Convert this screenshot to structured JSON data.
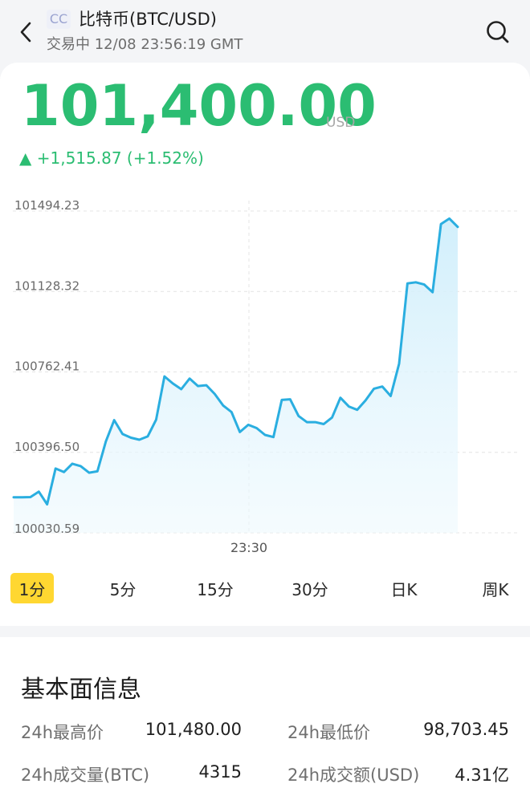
{
  "header": {
    "badge": "CC",
    "title": "比特币(BTC/USD)",
    "status": "交易中 12/08 23:56:19 GMT",
    "back_icon": "chevron-left-icon",
    "search_icon": "search-icon"
  },
  "quote": {
    "price": "101,400.00",
    "currency": "USD",
    "change": "▲ +1,515.87 (+1.52%)",
    "color_up": "#2bbd72"
  },
  "chart_data": {
    "type": "area",
    "title": "",
    "xlabel": "",
    "ylabel": "",
    "ytick_labels": [
      "101494.23",
      "101128.32",
      "100762.41",
      "100396.50",
      "100030.59"
    ],
    "yticks": [
      101494.23,
      101128.32,
      100762.41,
      100396.5,
      100030.59
    ],
    "xtick_labels": [
      "23:30"
    ],
    "ylim": [
      100030.59,
      101494.23
    ],
    "grid": true,
    "line_color": "#2aaee0",
    "series": [
      {
        "values": [
          100192,
          100192,
          100193,
          100218,
          100160,
          100323,
          100307,
          100345,
          100334,
          100304,
          100310,
          100446,
          100543,
          100480,
          100463,
          100454,
          100469,
          100545,
          100742,
          100710,
          100684,
          100732,
          100698,
          100702,
          100662,
          100610,
          100580,
          100489,
          100522,
          100507,
          100476,
          100466,
          100635,
          100638,
          100562,
          100534,
          100534,
          100525,
          100555,
          100645,
          100605,
          100590,
          100633,
          100686,
          100696,
          100653,
          100800,
          101165,
          101170,
          101160,
          101125,
          101435,
          101460,
          101422
        ]
      }
    ]
  },
  "tabs": [
    {
      "label": "1分",
      "active": true
    },
    {
      "label": "5分",
      "active": false
    },
    {
      "label": "15分",
      "active": false
    },
    {
      "label": "30分",
      "active": false
    },
    {
      "label": "日K",
      "active": false
    },
    {
      "label": "周K",
      "active": false
    }
  ],
  "fundamentals": {
    "title": "基本面信息",
    "high_label": "24h最高价",
    "high_value": "101,480.00",
    "low_label": "24h最低价",
    "low_value": "98,703.45",
    "volume_label": "24h成交量(BTC)",
    "volume_value": "4315",
    "turnover_label": "24h成交额(USD)",
    "turnover_value": "4.31亿"
  }
}
